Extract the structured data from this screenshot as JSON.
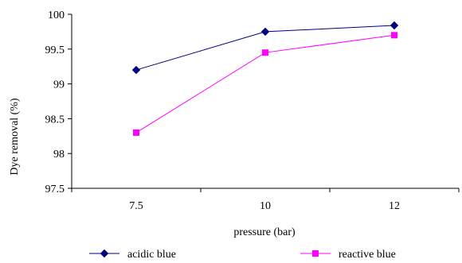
{
  "chart_data": {
    "type": "line",
    "title": "",
    "xlabel": "pressure (bar)",
    "ylabel": "Dye removal (%)",
    "categories": [
      "7.5",
      "10",
      "12"
    ],
    "ylim": [
      97.5,
      100
    ],
    "yticks": [
      "97.5",
      "98",
      "98.5",
      "99",
      "99.5",
      "100"
    ],
    "grid": false,
    "legend_position": "bottom",
    "series": [
      {
        "name": "acidic blue",
        "values": [
          99.2,
          99.75,
          99.84
        ],
        "color": "#000080",
        "marker": "diamond"
      },
      {
        "name": "reactive blue",
        "values": [
          98.3,
          99.45,
          99.7
        ],
        "color": "#ff00ff",
        "marker": "square"
      }
    ]
  }
}
